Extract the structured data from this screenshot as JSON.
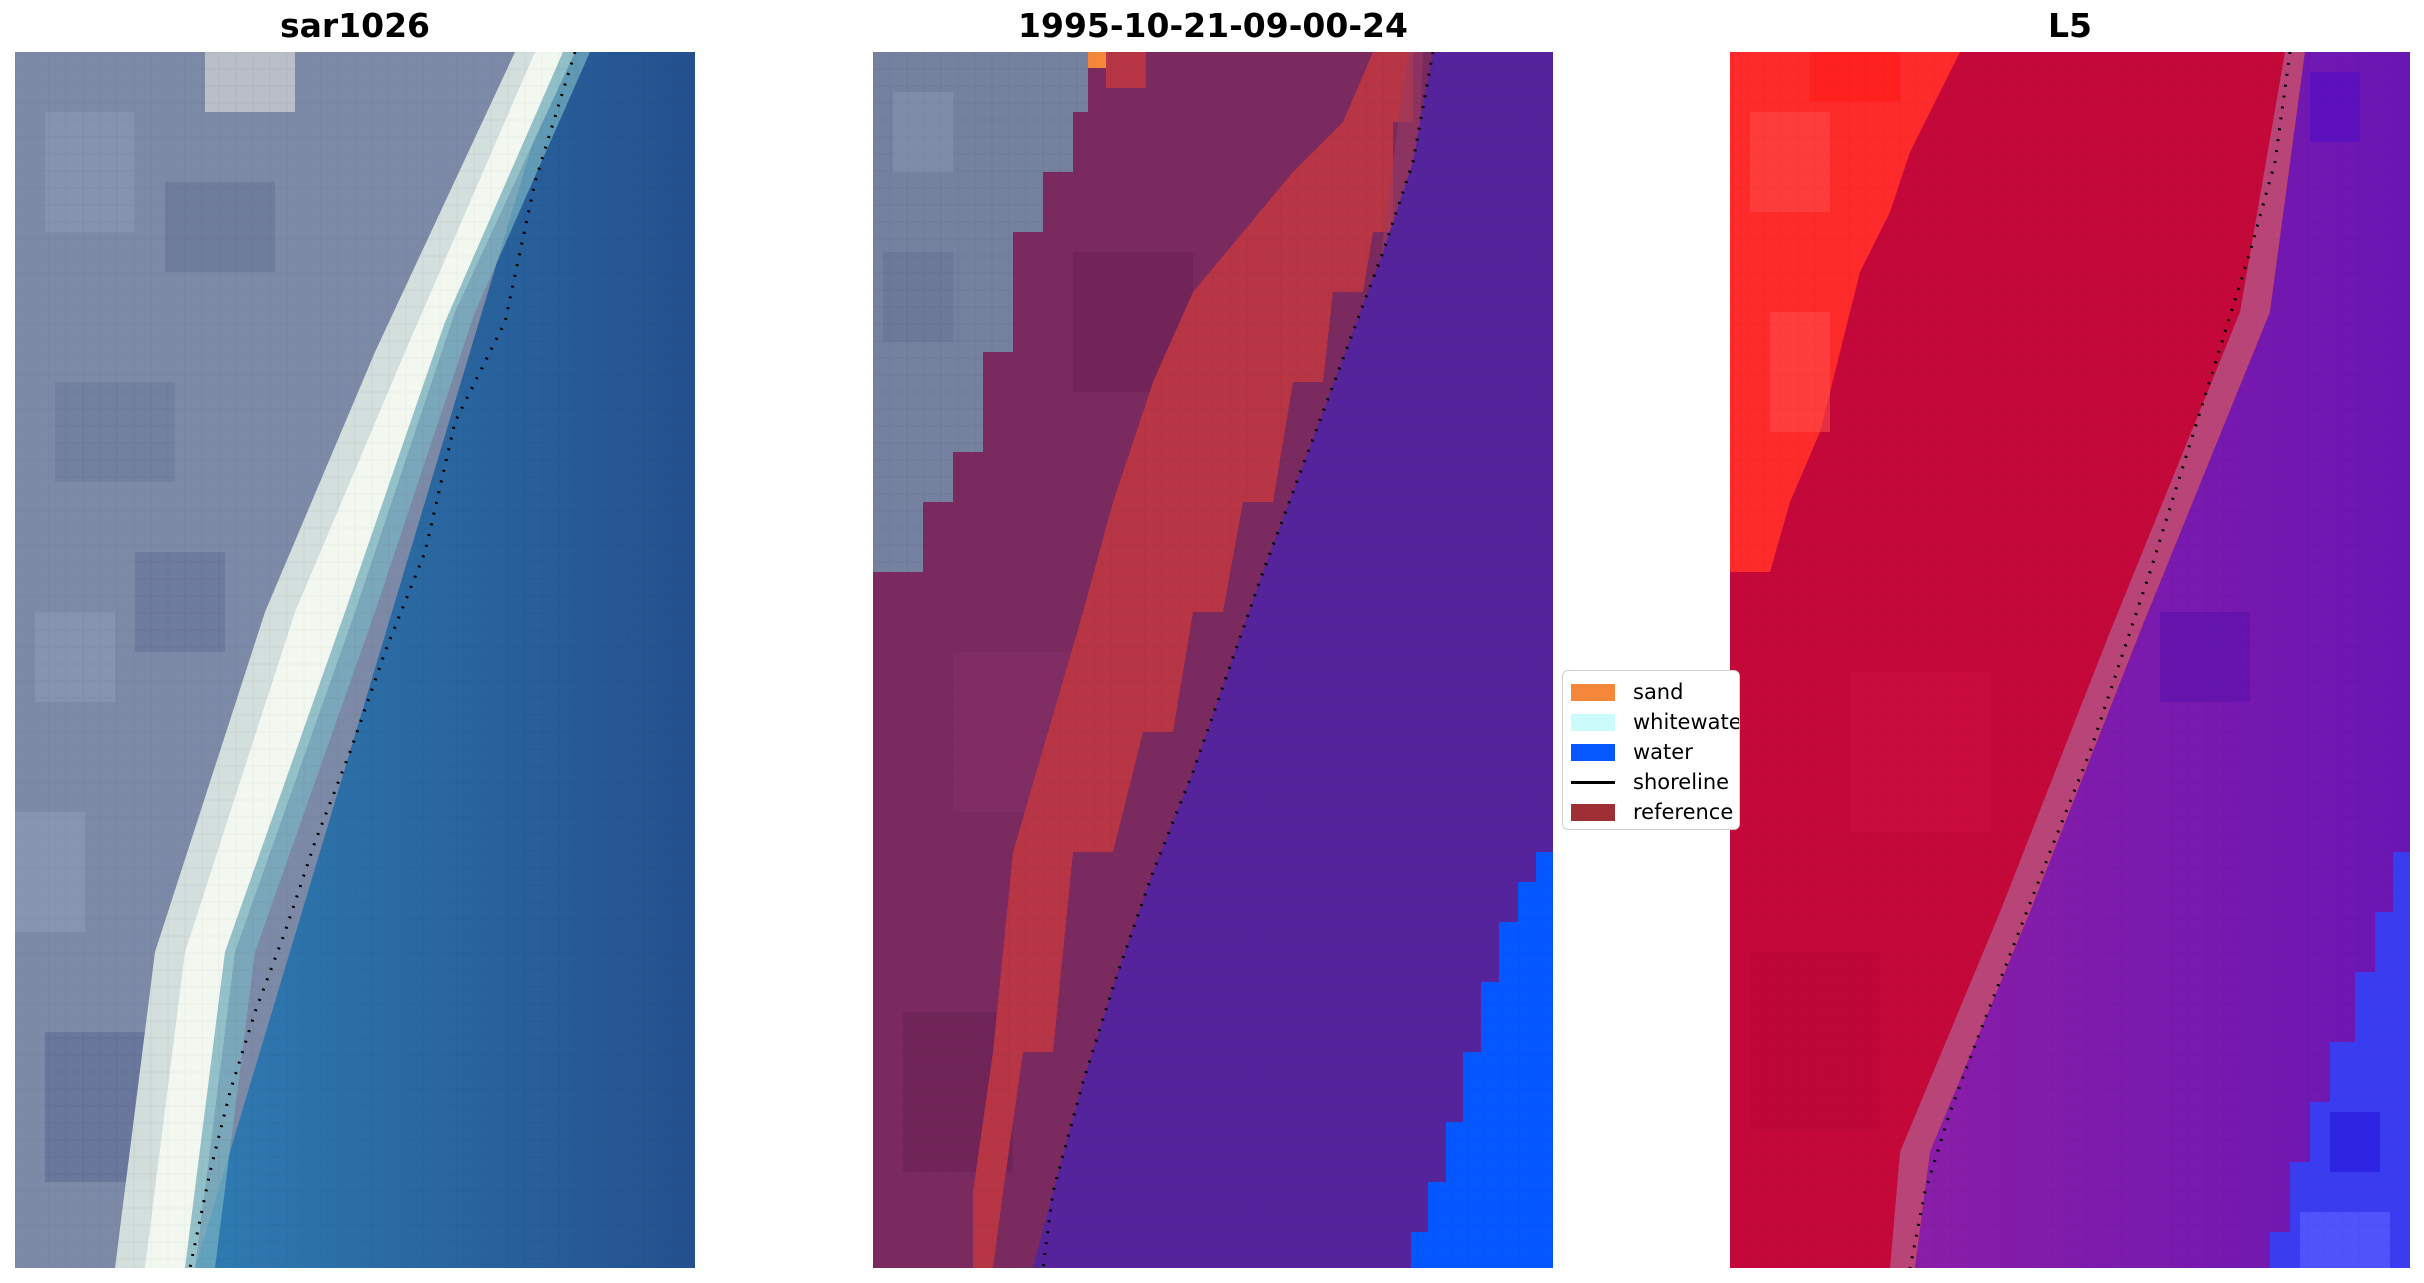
{
  "panels": {
    "left_title": "sar1026",
    "middle_title": "1995-10-21-09-00-24",
    "right_title": "L5"
  },
  "legend": {
    "items": [
      {
        "label": "sand",
        "color": "#f5873a",
        "kind": "patch"
      },
      {
        "label": "whitewater",
        "color": "#ccfcfa",
        "kind": "patch"
      },
      {
        "label": "water",
        "color": "#0557ff",
        "kind": "patch"
      },
      {
        "label": "shoreline",
        "color": "#000000",
        "kind": "line"
      },
      {
        "label": "reference",
        "color": "#9e3035",
        "kind": "patch"
      }
    ]
  },
  "colors": {
    "land_gray": "#7c8aa8",
    "sea_blue": "#2a6ea3",
    "deep_blue": "#244f8c",
    "sand_white": "#eef6ee",
    "class_land": "#7a2a5f",
    "class_band": "#b83545",
    "class_sea": "#55239c",
    "class_water": "#0557ff",
    "l5_red": "#c4083a",
    "l5_bright_red": "#ff2b2b",
    "l5_purple": "#7a1aa8",
    "l5_blue": "#3a3cf0"
  }
}
